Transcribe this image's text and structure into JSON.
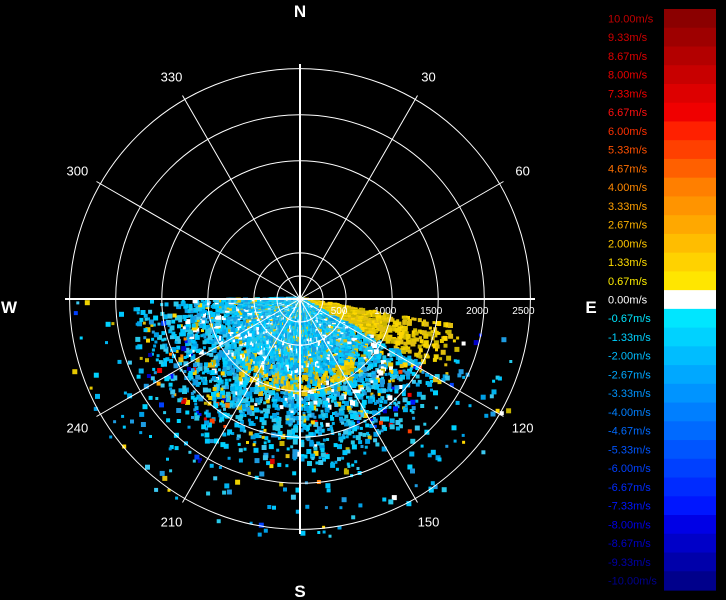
{
  "chart_data": {
    "type": "polar-radar",
    "cardinals": {
      "north": "N",
      "south": "S",
      "east": "E",
      "west": "W"
    },
    "azimuth_labels": [
      {
        "deg": 30,
        "text": "30"
      },
      {
        "deg": 60,
        "text": "60"
      },
      {
        "deg": 120,
        "text": "120"
      },
      {
        "deg": 150,
        "text": "150"
      },
      {
        "deg": 210,
        "text": "210"
      },
      {
        "deg": 240,
        "text": "240"
      },
      {
        "deg": 300,
        "text": "300"
      },
      {
        "deg": 330,
        "text": "330"
      }
    ],
    "range_rings": [
      500,
      1000,
      1500,
      2000,
      2500
    ],
    "range_labels": [
      "500",
      "1000",
      "1500",
      "2000",
      "2500"
    ],
    "max_range": 2550,
    "spoke_interval_deg": 30,
    "data_sector": {
      "start_az": 100,
      "end_az": 270
    },
    "colorbar": {
      "labels": [
        "10.00m/s",
        "9.33m/s",
        "8.67m/s",
        "8.00m/s",
        "7.33m/s",
        "6.67m/s",
        "6.00m/s",
        "5.33m/s",
        "4.67m/s",
        "4.00m/s",
        "3.33m/s",
        "2.67m/s",
        "2.00m/s",
        "1.33m/s",
        "0.67m/s",
        "0.00m/s",
        "-0.67m/s",
        "-1.33m/s",
        "-2.00m/s",
        "-2.67m/s",
        "-3.33m/s",
        "-4.00m/s",
        "-4.67m/s",
        "-5.33m/s",
        "-6.00m/s",
        "-6.67m/s",
        "-7.33m/s",
        "-8.00m/s",
        "-8.67m/s",
        "-9.33m/s",
        "-10.00m/s"
      ],
      "colors": [
        "#8b0000",
        "#9e0000",
        "#b30000",
        "#c80000",
        "#dd0000",
        "#f00000",
        "#ff2000",
        "#ff4000",
        "#ff6000",
        "#ff7f00",
        "#ff9400",
        "#ffa800",
        "#ffbd00",
        "#ffd200",
        "#ffe600",
        "#ffffff",
        "#00e6ff",
        "#00d2ff",
        "#00bdff",
        "#00a8ff",
        "#0094ff",
        "#007fff",
        "#006aff",
        "#0055ff",
        "#0040ff",
        "#002bff",
        "#0016ff",
        "#0000e6",
        "#0000c8",
        "#0000aa",
        "#00008b"
      ],
      "label_colors": [
        "#c00000",
        "#d00000",
        "#e00000",
        "#e80000",
        "#f00000",
        "#ff1010",
        "#ff3000",
        "#ff5000",
        "#ff7000",
        "#ff8800",
        "#ffa000",
        "#ffb400",
        "#ffc800",
        "#ffdc00",
        "#ffee00",
        "#ffffff",
        "#00e6ff",
        "#00d2ff",
        "#00bdff",
        "#00a8ff",
        "#0094ff",
        "#007fff",
        "#006aff",
        "#0055ff",
        "#0040ff",
        "#002bff",
        "#0016ff",
        "#0000e6",
        "#0000c8",
        "#0000aa",
        "#00008b"
      ]
    }
  }
}
